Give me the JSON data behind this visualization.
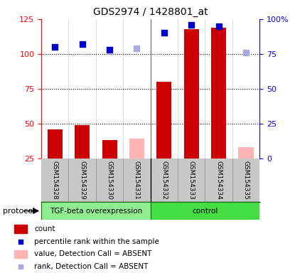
{
  "title": "GDS2974 / 1428801_at",
  "samples": [
    "GSM154328",
    "GSM154329",
    "GSM154330",
    "GSM154331",
    "GSM154332",
    "GSM154333",
    "GSM154334",
    "GSM154335"
  ],
  "count_values": [
    46,
    49,
    38,
    null,
    80,
    118,
    119,
    null
  ],
  "count_absent_values": [
    null,
    null,
    null,
    39,
    null,
    null,
    null,
    33
  ],
  "percentile_values": [
    80,
    82,
    78,
    null,
    90,
    96,
    95,
    null
  ],
  "percentile_absent_values": [
    null,
    null,
    null,
    79,
    null,
    null,
    null,
    76
  ],
  "left_ylim": [
    25,
    125
  ],
  "right_ylim": [
    0,
    100
  ],
  "left_yticks": [
    25,
    50,
    75,
    100,
    125
  ],
  "right_yticks": [
    0,
    25,
    50,
    75,
    100
  ],
  "right_yticklabels": [
    "0",
    "25",
    "50",
    "75",
    "100%"
  ],
  "dotted_lines": [
    50,
    75,
    100
  ],
  "bar_color": "#CC0000",
  "bar_absent_color": "#FFB3B3",
  "dot_color": "#0000CC",
  "dot_absent_color": "#AAAADD",
  "tfg_group_color": "#90EE90",
  "ctrl_group_color": "#44DD44",
  "bg_color": "#C8C8C8",
  "legend": [
    {
      "label": "count",
      "color": "#CC0000",
      "type": "bar"
    },
    {
      "label": "percentile rank within the sample",
      "color": "#0000CC",
      "type": "dot"
    },
    {
      "label": "value, Detection Call = ABSENT",
      "color": "#FFB3B3",
      "type": "bar"
    },
    {
      "label": "rank, Detection Call = ABSENT",
      "color": "#AAAADD",
      "type": "dot"
    }
  ]
}
